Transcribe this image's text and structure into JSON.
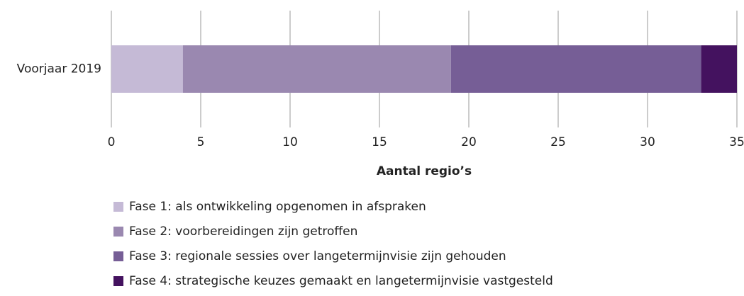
{
  "chart_data": {
    "type": "stacked_barh",
    "categories": [
      "Voorjaar 2019"
    ],
    "series": [
      {
        "name": "Fase 1: als ontwikkeling opgenomen in afspraken",
        "color": "#c5bad6",
        "values": [
          4
        ]
      },
      {
        "name": "Fase 2: voorbereidingen zijn getroffen",
        "color": "#9a88b0",
        "values": [
          15
        ]
      },
      {
        "name": "Fase 3: regionale sessies over langetermijnvisie zijn gehouden",
        "color": "#765e96",
        "values": [
          14
        ]
      },
      {
        "name": "Fase 4: strategische keuzes gemaakt en langetermijnvisie vastgesteld",
        "color": "#44125f",
        "values": [
          2
        ]
      }
    ],
    "xlabel": "Aantal regio’s",
    "xlim": [
      0,
      35
    ],
    "xticks": [
      0,
      5,
      10,
      15,
      20,
      25,
      30,
      35
    ],
    "grid": true
  }
}
